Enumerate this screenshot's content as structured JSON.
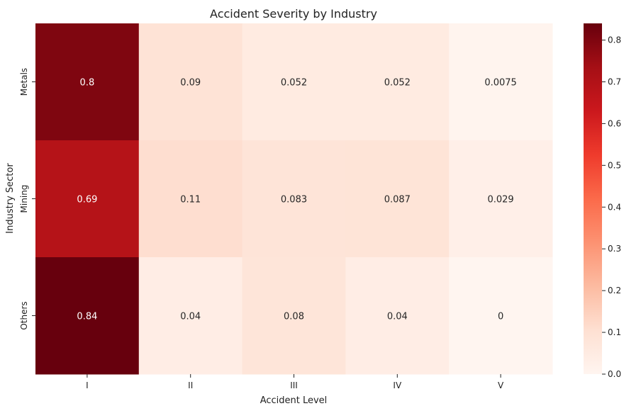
{
  "chart_data": {
    "type": "heatmap",
    "title": "Accident Severity by Industry",
    "xlabel": "Accident Level",
    "ylabel": "Industry Sector",
    "x_categories": [
      "I",
      "II",
      "III",
      "IV",
      "V"
    ],
    "y_categories": [
      "Metals",
      "Mining",
      "Others"
    ],
    "values": [
      [
        0.8,
        0.09,
        0.052,
        0.052,
        0.0075
      ],
      [
        0.69,
        0.11,
        0.083,
        0.087,
        0.029
      ],
      [
        0.84,
        0.04,
        0.08,
        0.04,
        0
      ]
    ],
    "value_labels": [
      [
        "0.8",
        "0.09",
        "0.052",
        "0.052",
        "0.0075"
      ],
      [
        "0.69",
        "0.11",
        "0.083",
        "0.087",
        "0.029"
      ],
      [
        "0.84",
        "0.04",
        "0.08",
        "0.04",
        "0"
      ]
    ],
    "colormap": "Reds",
    "vmin": 0,
    "vmax": 0.84,
    "colorbar_ticks": [
      0.0,
      0.1,
      0.2,
      0.3,
      0.4,
      0.5,
      0.6,
      0.7,
      0.8
    ],
    "colorbar_tick_labels": [
      "0.0",
      "0.1",
      "0.2",
      "0.3",
      "0.4",
      "0.5",
      "0.6",
      "0.7",
      "0.8"
    ]
  }
}
